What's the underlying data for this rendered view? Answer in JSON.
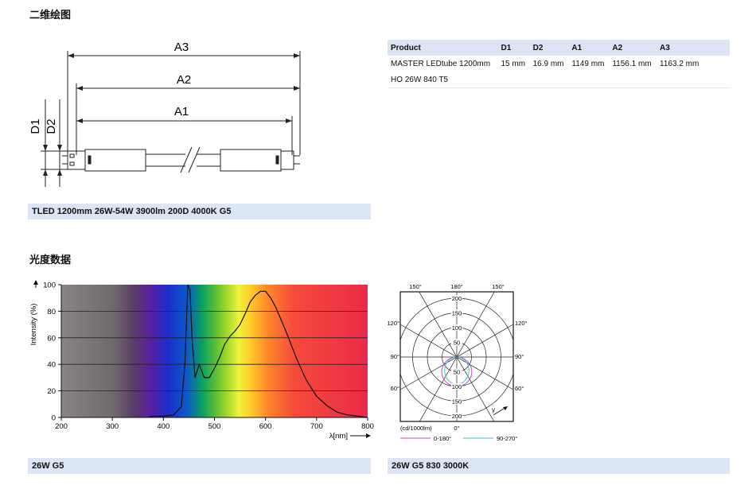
{
  "section1": {
    "title": "二维绘图"
  },
  "section2": {
    "title": "光度数据"
  },
  "dimension_drawing": {
    "labels": {
      "a3": "A3",
      "a2": "A2",
      "a1": "A1",
      "d1": "D1",
      "d2": "D2"
    },
    "caption": "TLED 1200mm 26W-54W 3900lm 200D 4000K G5"
  },
  "spec_table": {
    "headers": [
      "Product",
      "D1",
      "D2",
      "A1",
      "A2",
      "A3"
    ],
    "row": {
      "product_line1": "MASTER LEDtube 1200mm",
      "product_line2": "HO 26W 840 T5",
      "d1": "15 mm",
      "d2": "16.9 mm",
      "a1": "1149 mm",
      "a2": "1156.1 mm",
      "a3": "1163.2 mm"
    }
  },
  "spectrum_chart": {
    "caption": "26W G5",
    "ylabel": "Intensity (%)",
    "xlabel": "λ[nm]",
    "x_ticks": [
      "200",
      "300",
      "400",
      "500",
      "600",
      "700",
      "800"
    ],
    "y_ticks": [
      "0",
      "20",
      "40",
      "60",
      "80",
      "100"
    ]
  },
  "polar_chart": {
    "caption": "26W G5 830 3000K",
    "unit_label": "(cd/1000lm)",
    "zero_label": "0°",
    "gamma_label": "γ",
    "top_angles": [
      "150°",
      "180°",
      "150°"
    ],
    "left_angles": [
      "120°",
      "90°",
      "60°"
    ],
    "right_angles": [
      "120°",
      "90°",
      "60°"
    ],
    "radial_labels_top": [
      "200",
      "150",
      "100",
      "50"
    ],
    "radial_labels_bottom": [
      "50",
      "100",
      "150",
      "200"
    ],
    "legend": [
      {
        "label": "0-180°",
        "color": "#c050c0"
      },
      {
        "label": "90-270°",
        "color": "#40c0c8"
      }
    ]
  },
  "chart_data": [
    {
      "type": "area",
      "title": "",
      "xlabel": "λ[nm]",
      "ylabel": "Intensity (%)",
      "xlim": [
        200,
        800
      ],
      "ylim": [
        0,
        100
      ],
      "grid": true,
      "series": [
        {
          "x": [
            370,
            380,
            400,
            420,
            435,
            442,
            448,
            452,
            456,
            462,
            470,
            480,
            490,
            500,
            510,
            520,
            530,
            540,
            550,
            560,
            570,
            580,
            590,
            600,
            610,
            620,
            640,
            660,
            680,
            700,
            720,
            740,
            760,
            780,
            800
          ],
          "y": [
            0,
            1,
            1,
            2,
            8,
            40,
            100,
            96,
            60,
            30,
            40,
            30,
            30,
            37,
            45,
            55,
            61,
            65,
            70,
            78,
            87,
            92,
            95,
            95,
            90,
            83,
            65,
            45,
            28,
            16,
            9,
            4,
            2,
            1,
            0
          ]
        }
      ]
    },
    {
      "type": "polar",
      "title": "",
      "unit": "(cd/1000lm)",
      "radial_ticks": [
        50,
        100,
        150,
        200
      ],
      "angle_step_deg": 30,
      "series": [
        {
          "name": "0-180°",
          "color": "#c050c0",
          "shape": "lambertian",
          "peak_cd": 100
        },
        {
          "name": "90-270°",
          "color": "#40c0c8",
          "shape": "lambertian",
          "peak_cd": 100
        }
      ]
    }
  ]
}
